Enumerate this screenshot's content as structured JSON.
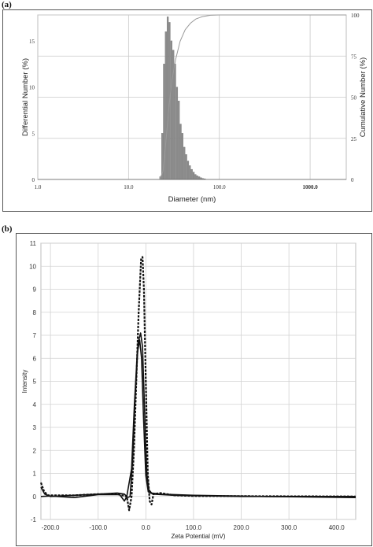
{
  "chart_data": [
    {
      "panel": "(a)",
      "type": "bar",
      "xlabel": "Diameter (nm)",
      "ylabel": "Differential Number (%)",
      "y2label": "Cumulative Number (%)",
      "xscale": "log",
      "xlim": [
        1.0,
        2500
      ],
      "ylim": [
        0,
        17.8
      ],
      "y2lim": [
        0,
        100
      ],
      "xticks": [
        "1.0",
        "10.0",
        "100.0",
        "1000.0"
      ],
      "xtick_values": [
        1,
        10,
        100,
        1000
      ],
      "yticks": [
        0,
        5,
        10,
        15
      ],
      "y2ticks": [
        0,
        25,
        50,
        75,
        100
      ],
      "grid": true,
      "bar_color": "#8c8c8c",
      "line_color": "#9a9a9a",
      "bars": [
        {
          "x": 22.5,
          "y": 0.3
        },
        {
          "x": 23.6,
          "y": 5.0
        },
        {
          "x": 24.7,
          "y": 12.5
        },
        {
          "x": 25.9,
          "y": 16.0
        },
        {
          "x": 27.1,
          "y": 17.6
        },
        {
          "x": 28.4,
          "y": 17.0
        },
        {
          "x": 29.8,
          "y": 15.0
        },
        {
          "x": 31.2,
          "y": 14.0
        },
        {
          "x": 32.7,
          "y": 12.5
        },
        {
          "x": 34.3,
          "y": 10.0
        },
        {
          "x": 35.9,
          "y": 8.5
        },
        {
          "x": 37.6,
          "y": 6.0
        },
        {
          "x": 39.4,
          "y": 5.0
        },
        {
          "x": 41.3,
          "y": 3.5
        },
        {
          "x": 43.3,
          "y": 2.7
        },
        {
          "x": 45.4,
          "y": 2.0
        },
        {
          "x": 47.6,
          "y": 1.5
        },
        {
          "x": 49.9,
          "y": 1.1
        },
        {
          "x": 52.3,
          "y": 0.8
        },
        {
          "x": 54.8,
          "y": 0.55
        },
        {
          "x": 57.4,
          "y": 0.4
        },
        {
          "x": 60.2,
          "y": 0.3
        },
        {
          "x": 63.1,
          "y": 0.2
        },
        {
          "x": 66.1,
          "y": 0.12
        },
        {
          "x": 69.3,
          "y": 0.08
        }
      ],
      "cumulative": [
        {
          "x": 22,
          "y": 0
        },
        {
          "x": 24,
          "y": 5
        },
        {
          "x": 26,
          "y": 25
        },
        {
          "x": 28,
          "y": 45
        },
        {
          "x": 30,
          "y": 60
        },
        {
          "x": 33,
          "y": 73
        },
        {
          "x": 37,
          "y": 84
        },
        {
          "x": 42,
          "y": 91
        },
        {
          "x": 48,
          "y": 95
        },
        {
          "x": 55,
          "y": 97.5
        },
        {
          "x": 65,
          "y": 99
        },
        {
          "x": 80,
          "y": 99.8
        },
        {
          "x": 100,
          "y": 100
        },
        {
          "x": 2500,
          "y": 100
        }
      ]
    },
    {
      "panel": "(b)",
      "type": "line",
      "xlabel": "Zeta Potential (mV)",
      "ylabel": "Intensity",
      "xlim": [
        -220,
        440
      ],
      "ylim": [
        -1,
        11
      ],
      "xticks": [
        "-200.0",
        "-100.0",
        "0.0",
        "100.0",
        "200.0",
        "300.0",
        "400.0"
      ],
      "xtick_values": [
        -200,
        -100,
        0,
        100,
        200,
        300,
        400
      ],
      "yticks": [
        -1,
        0,
        1,
        2,
        3,
        4,
        5,
        6,
        7,
        8,
        9,
        10,
        11
      ],
      "grid": true,
      "series": [
        {
          "style": "dashed",
          "points": [
            [
              -220,
              0.6
            ],
            [
              -213,
              0.2
            ],
            [
              -205,
              0.05
            ],
            [
              -150,
              0.05
            ],
            [
              -100,
              0.1
            ],
            [
              -60,
              0.1
            ],
            [
              -40,
              0.0
            ],
            [
              -35,
              -0.6
            ],
            [
              -30,
              0.0
            ],
            [
              -25,
              2.0
            ],
            [
              -20,
              5.0
            ],
            [
              -15,
              8.0
            ],
            [
              -10,
              10.3
            ],
            [
              -7,
              10.4
            ],
            [
              -4,
              9.0
            ],
            [
              0,
              5.0
            ],
            [
              4,
              1.0
            ],
            [
              8,
              -0.2
            ],
            [
              12,
              -0.35
            ],
            [
              16,
              0.1
            ],
            [
              30,
              0.15
            ],
            [
              60,
              0.05
            ],
            [
              100,
              0.02
            ],
            [
              440,
              0.0
            ]
          ]
        },
        {
          "style": "solid",
          "points": [
            [
              -220,
              0.4
            ],
            [
              -212,
              0.1
            ],
            [
              -200,
              0.0
            ],
            [
              -150,
              0.05
            ],
            [
              -100,
              0.1
            ],
            [
              -60,
              0.15
            ],
            [
              -45,
              0.1
            ],
            [
              -38,
              -0.05
            ],
            [
              -33,
              0.0
            ],
            [
              -28,
              1.5
            ],
            [
              -22,
              4.5
            ],
            [
              -16,
              6.7
            ],
            [
              -11,
              7.1
            ],
            [
              -7,
              6.5
            ],
            [
              -3,
              4.0
            ],
            [
              2,
              1.0
            ],
            [
              6,
              0.3
            ],
            [
              12,
              0.15
            ],
            [
              30,
              0.1
            ],
            [
              100,
              0.05
            ],
            [
              250,
              0.0
            ],
            [
              440,
              -0.05
            ]
          ]
        },
        {
          "style": "solid",
          "points": [
            [
              -220,
              0.0
            ],
            [
              -200,
              0.02
            ],
            [
              -150,
              -0.05
            ],
            [
              -100,
              0.08
            ],
            [
              -55,
              0.08
            ],
            [
              -45,
              -0.2
            ],
            [
              -40,
              0.0
            ],
            [
              -30,
              1.2
            ],
            [
              -24,
              4.0
            ],
            [
              -18,
              6.2
            ],
            [
              -13,
              6.8
            ],
            [
              -9,
              6.0
            ],
            [
              -5,
              3.5
            ],
            [
              0,
              0.9
            ],
            [
              5,
              0.2
            ],
            [
              15,
              0.1
            ],
            [
              60,
              0.05
            ],
            [
              200,
              0.0
            ],
            [
              440,
              0.0
            ]
          ]
        }
      ]
    }
  ],
  "labels": {
    "panel_a": "(a)",
    "panel_b": "(b)"
  }
}
